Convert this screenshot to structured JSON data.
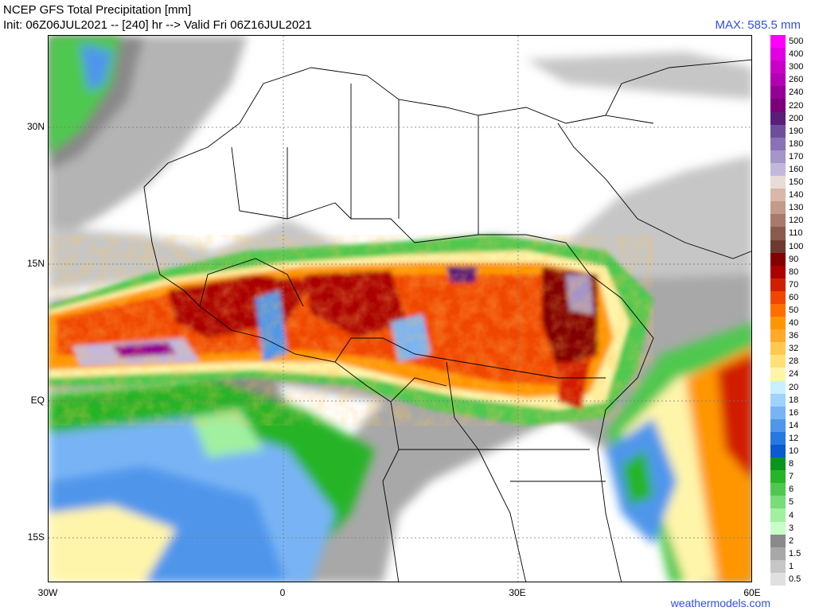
{
  "header": {
    "title": "NCEP GFS Total Precipitation [mm]",
    "subtitle": "Init: 06Z06JUL2021 -- [240] hr --> Valid Fri 06Z16JUL2021",
    "max_label": "MAX: 585.5 mm"
  },
  "axes": {
    "lat_labels": [
      "30N",
      "15N",
      "EQ",
      "15S"
    ],
    "lat_values": [
      30,
      15,
      0,
      -15
    ],
    "lon_labels": [
      "30W",
      "0",
      "30E",
      "60E"
    ],
    "lon_values": [
      -30,
      0,
      30,
      60
    ],
    "lon_range": [
      -30,
      60
    ],
    "lat_range": [
      -20,
      40
    ]
  },
  "legend": {
    "labels": [
      "500",
      "400",
      "300",
      "260",
      "240",
      "220",
      "200",
      "190",
      "180",
      "170",
      "160",
      "150",
      "140",
      "130",
      "120",
      "110",
      "100",
      "90",
      "80",
      "70",
      "60",
      "50",
      "40",
      "36",
      "32",
      "28",
      "24",
      "20",
      "18",
      "16",
      "14",
      "12",
      "10",
      "8",
      "7",
      "6",
      "5",
      "4",
      "3",
      "2",
      "1.5",
      "1",
      "0.5"
    ],
    "colors": [
      "#ff00ff",
      "#e100e1",
      "#c800c8",
      "#b400b4",
      "#960096",
      "#7a007a",
      "#5a1e78",
      "#6e4e9c",
      "#8a72b4",
      "#a595c8",
      "#c3b8dc",
      "#e8dcd8",
      "#d9b8a8",
      "#c49a88",
      "#a87a6a",
      "#8a5a4c",
      "#6e3a30",
      "#820000",
      "#aa0000",
      "#d21e00",
      "#f04600",
      "#ff6e00",
      "#ff9600",
      "#ffaa28",
      "#ffc850",
      "#ffe178",
      "#fff5aa",
      "#c8f0ff",
      "#a0d2ff",
      "#78b4f5",
      "#5096eb",
      "#2878e1",
      "#0a5ad2",
      "#0a961e",
      "#28b428",
      "#50c850",
      "#78dc78",
      "#a0f0a0",
      "#c8ffc8",
      "#8a8a8a",
      "#a8a8a8",
      "#c6c6c6",
      "#e0e0e0"
    ]
  },
  "credit": "weathermodels.com"
}
